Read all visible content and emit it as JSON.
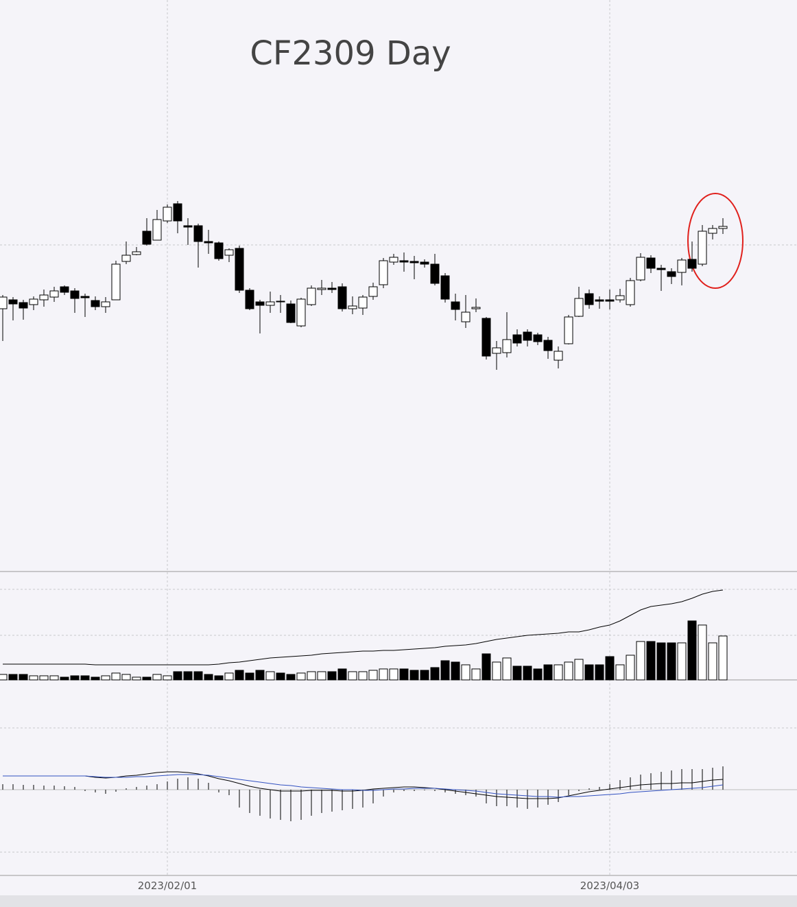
{
  "chart_data": [
    {
      "type": "candlestick",
      "title": "CF2309 Day",
      "categories": [
        null,
        null,
        null,
        null,
        null,
        null,
        null,
        null,
        null,
        null,
        null,
        null,
        null,
        null,
        null,
        null,
        "2023/02/01",
        null,
        null,
        null,
        null,
        null,
        null,
        null,
        null,
        null,
        null,
        null,
        null,
        null,
        null,
        null,
        null,
        null,
        null,
        null,
        null,
        null,
        null,
        null,
        null,
        null,
        null,
        null,
        null,
        null,
        null,
        null,
        null,
        null,
        null,
        null,
        null,
        null,
        null,
        null,
        null,
        null,
        null,
        "2023/04/03",
        null,
        null,
        null,
        null,
        null,
        null,
        null,
        null,
        null,
        null,
        null
      ],
      "open": [
        550,
        563,
        559,
        556,
        563,
        567,
        582,
        576,
        568,
        562,
        553,
        563,
        619,
        629,
        663,
        650,
        678,
        703,
        671,
        671,
        648,
        646,
        628,
        638,
        577,
        560,
        555,
        561,
        557,
        525,
        556,
        578,
        580,
        582,
        550,
        551,
        568,
        585,
        618,
        620,
        619,
        618,
        615,
        598,
        560,
        531,
        550,
        536,
        485,
        486,
        512,
        516,
        512,
        504,
        475,
        499,
        539,
        572,
        563,
        563,
        563,
        556,
        592,
        624,
        609,
        604,
        603,
        622,
        615,
        660,
        667
      ],
      "close": [
        567,
        557,
        551,
        564,
        570,
        576,
        574,
        565,
        566,
        553,
        560,
        615,
        628,
        633,
        644,
        680,
        698,
        678,
        669,
        648,
        646,
        623,
        636,
        577,
        550,
        555,
        560,
        560,
        530,
        564,
        580,
        580,
        578,
        550,
        554,
        567,
        582,
        620,
        625,
        618,
        617,
        615,
        587,
        564,
        549,
        545,
        552,
        481,
        493,
        505,
        500,
        504,
        502,
        489,
        488,
        538,
        565,
        556,
        561,
        561,
        569,
        591,
        625,
        609,
        607,
        597,
        621,
        609,
        663,
        667,
        670
      ],
      "high": [
        570,
        567,
        563,
        568,
        578,
        582,
        584,
        580,
        572,
        568,
        567,
        620,
        648,
        640,
        682,
        694,
        702,
        707,
        682,
        674,
        665,
        648,
        638,
        642,
        580,
        563,
        575,
        570,
        562,
        566,
        584,
        592,
        589,
        587,
        568,
        570,
        588,
        624,
        630,
        632,
        627,
        622,
        630,
        602,
        572,
        570,
        565,
        538,
        503,
        545,
        520,
        520,
        515,
        509,
        495,
        541,
        582,
        578,
        568,
        578,
        579,
        595,
        631,
        628,
        614,
        609,
        624,
        648,
        672,
        672,
        682
      ],
      "low": [
        503,
        533,
        534,
        548,
        553,
        560,
        570,
        544,
        538,
        548,
        544,
        563,
        615,
        628,
        642,
        650,
        675,
        660,
        643,
        610,
        630,
        620,
        618,
        573,
        548,
        514,
        544,
        544,
        529,
        523,
        554,
        570,
        573,
        546,
        542,
        541,
        563,
        580,
        614,
        604,
        593,
        610,
        584,
        559,
        533,
        522,
        545,
        476,
        461,
        479,
        495,
        495,
        497,
        477,
        463,
        498,
        538,
        550,
        550,
        549,
        559,
        553,
        590,
        602,
        576,
        586,
        584,
        604,
        612,
        651,
        659
      ],
      "up_color": "#ffffff",
      "down_color": "#000000",
      "ylim": [
        170,
        1000
      ]
    },
    {
      "type": "bar",
      "values": [
        8,
        8,
        8,
        6,
        6,
        6,
        4,
        6,
        6,
        4,
        6,
        10,
        8,
        4,
        4,
        8,
        6,
        12,
        12,
        12,
        8,
        6,
        10,
        14,
        10,
        14,
        12,
        10,
        8,
        10,
        12,
        12,
        12,
        16,
        12,
        12,
        14,
        16,
        16,
        16,
        14,
        14,
        18,
        28,
        26,
        22,
        16,
        38,
        26,
        32,
        20,
        20,
        16,
        22,
        22,
        26,
        30,
        22,
        22,
        34,
        22,
        36,
        56,
        56,
        54,
        54,
        54,
        86,
        80,
        54,
        64
      ],
      "line": {
        "color": "#000000",
        "values": [
          23,
          23,
          23,
          23,
          23,
          23,
          23,
          23,
          23,
          22,
          22,
          22,
          22,
          22,
          22,
          22,
          22,
          22,
          22,
          22,
          22,
          23,
          25,
          26,
          28,
          30,
          32,
          33,
          34,
          35,
          36,
          38,
          39,
          40,
          41,
          42,
          42,
          43,
          43,
          44,
          45,
          46,
          47,
          49,
          50,
          51,
          53,
          56,
          59,
          61,
          63,
          65,
          66,
          67,
          68,
          70,
          70,
          73,
          77,
          80,
          86,
          94,
          102,
          107,
          109,
          111,
          114,
          119,
          125,
          129,
          131
        ]
      },
      "ylim": [
        0,
        158
      ]
    },
    {
      "type": "macd",
      "histogram": [
        8,
        8,
        7,
        7,
        6,
        6,
        5,
        4,
        -2,
        -4,
        -6,
        -3,
        2,
        4,
        6,
        8,
        12,
        16,
        18,
        16,
        10,
        -4,
        -8,
        -26,
        -34,
        -38,
        -42,
        -44,
        -46,
        -44,
        -38,
        -34,
        -32,
        -30,
        -28,
        -26,
        -20,
        -10,
        -4,
        -2,
        -2,
        -1,
        -2,
        -4,
        -6,
        -8,
        -10,
        -20,
        -24,
        -24,
        -26,
        -28,
        -26,
        -22,
        -18,
        -8,
        -2,
        2,
        4,
        8,
        14,
        18,
        22,
        24,
        26,
        28,
        30,
        30,
        30,
        32,
        34
      ],
      "series": [
        {
          "color": "#000000",
          "values": [
            20,
            20,
            20,
            20,
            20,
            20,
            20,
            20,
            20,
            18,
            17,
            18,
            20,
            21,
            23,
            25,
            26,
            26,
            25,
            23,
            20,
            16,
            13,
            9,
            5,
            2,
            0,
            -2,
            -2,
            -2,
            -1,
            -1,
            -1,
            -2,
            -2,
            -1,
            1,
            2,
            3,
            4,
            4,
            3,
            2,
            0,
            -2,
            -4,
            -6,
            -8,
            -10,
            -11,
            -12,
            -13,
            -13,
            -13,
            -12,
            -9,
            -6,
            -3,
            -1,
            1,
            3,
            5,
            7,
            8,
            9,
            9,
            10,
            10,
            12,
            14,
            15
          ]
        },
        {
          "color": "#3050c0",
          "values": [
            20,
            20,
            20,
            20,
            20,
            20,
            20,
            20,
            20,
            19,
            18,
            18,
            18,
            19,
            19,
            20,
            21,
            22,
            22,
            22,
            21,
            19,
            17,
            15,
            13,
            11,
            9,
            7,
            6,
            4,
            3,
            2,
            1,
            0,
            0,
            -1,
            -1,
            0,
            1,
            1,
            2,
            2,
            2,
            1,
            0,
            -1,
            -2,
            -4,
            -6,
            -7,
            -8,
            -9,
            -10,
            -10,
            -11,
            -10,
            -10,
            -9,
            -8,
            -7,
            -6,
            -4,
            -3,
            -2,
            -1,
            0,
            1,
            2,
            3,
            5,
            7
          ]
        }
      ],
      "ylim": [
        -125,
        160
      ]
    }
  ]
}
